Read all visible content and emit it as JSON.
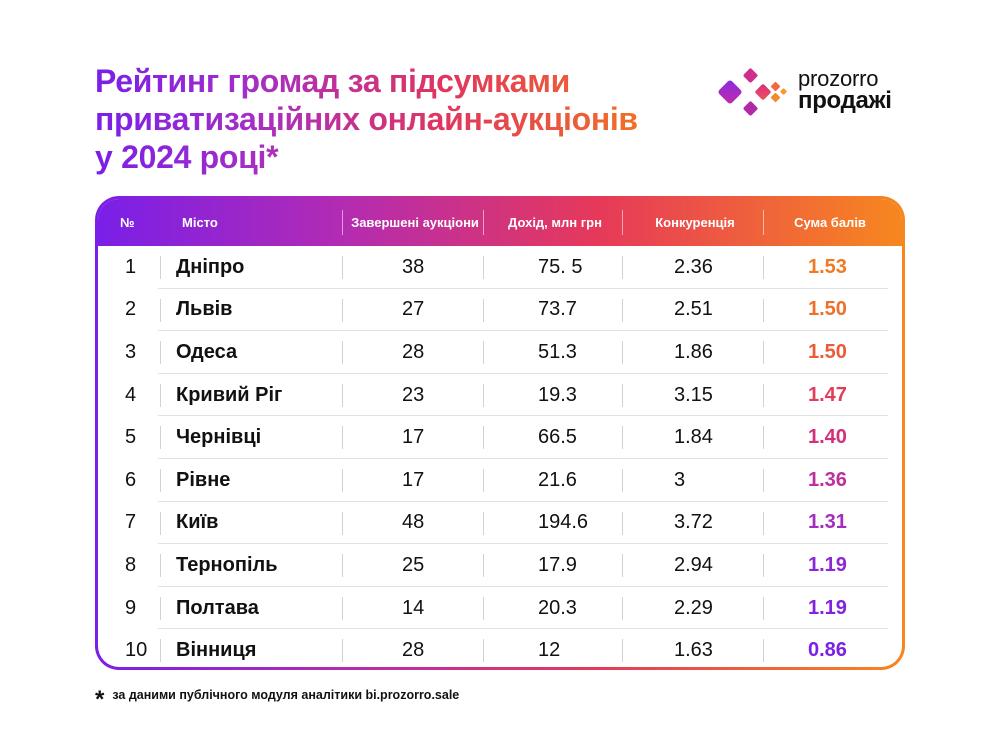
{
  "title": "Рейтинг громад за підсумками приватизаційних онлайн-аукціонів у 2024 році*",
  "logo": {
    "line1": "prozorro",
    "line2": "продажі"
  },
  "table": {
    "headers": {
      "num": "№",
      "city": "Місто",
      "auctions": "Завершені аукціони",
      "income": "Дохід, млн грн",
      "competition": "Конкуренція",
      "score": "Сума балів"
    },
    "rows": [
      {
        "num": "1",
        "city": "Дніпро",
        "auctions": "38",
        "income": "75. 5",
        "competition": "2.36",
        "score": "1.53",
        "score_color": "#f07a22"
      },
      {
        "num": "2",
        "city": "Львів",
        "auctions": "27",
        "income": "73.7",
        "competition": "2.51",
        "score": "1.50",
        "score_color": "#ef6f2b"
      },
      {
        "num": "3",
        "city": "Одеса",
        "auctions": "28",
        "income": "51.3",
        "competition": "1.86",
        "score": "1.50",
        "score_color": "#ec5a38"
      },
      {
        "num": "4",
        "city": "Кривий Ріг",
        "auctions": "23",
        "income": "19.3",
        "competition": "3.15",
        "score": "1.47",
        "score_color": "#e23d5a"
      },
      {
        "num": "5",
        "city": "Чернівці",
        "auctions": "17",
        "income": "66.5",
        "competition": "1.84",
        "score": "1.40",
        "score_color": "#d4307a"
      },
      {
        "num": "6",
        "city": "Рівне",
        "auctions": "17",
        "income": "21.6",
        "competition": "3",
        "score": "1.36",
        "score_color": "#bf2f9c"
      },
      {
        "num": "7",
        "city": "Київ",
        "auctions": "48",
        "income": "194.6",
        "competition": "3.72",
        "score": "1.31",
        "score_color": "#a42dbf"
      },
      {
        "num": "8",
        "city": "Тернопіль",
        "auctions": "25",
        "income": "17.9",
        "competition": "2.94",
        "score": "1.19",
        "score_color": "#8c27d8"
      },
      {
        "num": "9",
        "city": "Полтава",
        "auctions": "14",
        "income": "20.3",
        "competition": "2.29",
        "score": "1.19",
        "score_color": "#8124e0"
      },
      {
        "num": "10",
        "city": "Вінниця",
        "auctions": "28",
        "income": "12",
        "competition": "1.63",
        "score": "0.86",
        "score_color": "#7a20e6"
      }
    ]
  },
  "footnote": {
    "mark": "*",
    "text": "за даними публічного модуля аналітики bi.prozorro.sale"
  }
}
